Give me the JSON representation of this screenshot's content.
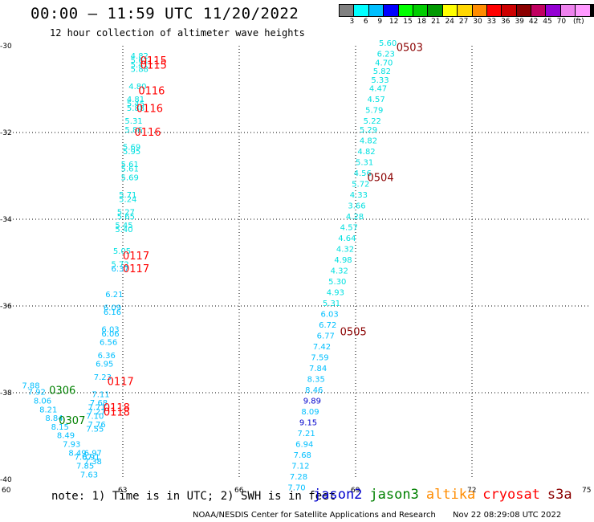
{
  "header": {
    "title": "00:00 – 11:59 UTC 11/20/2022",
    "subtitle": "12 hour collection of altimeter wave heights"
  },
  "colorbar": {
    "colors": [
      "#808080",
      "#00ffff",
      "#00bfff",
      "#0000ff",
      "#00ff00",
      "#00cd00",
      "#009900",
      "#ffff00",
      "#ffd700",
      "#ff8c00",
      "#ff0000",
      "#cd0000",
      "#8b0000",
      "#c00060",
      "#9400d3",
      "#ee82ee",
      "#ff99ff",
      "#000000"
    ],
    "labels": [
      "3",
      "6",
      "9",
      "12",
      "15",
      "18",
      "21",
      "24",
      "27",
      "30",
      "33",
      "36",
      "39",
      "42",
      "45",
      "70",
      "(ft)"
    ]
  },
  "chart_data": {
    "type": "scatter",
    "xlim": [
      60,
      75
    ],
    "ylim": [
      -40,
      -30
    ],
    "x_ticks": [
      "60",
      "63",
      "66",
      "69",
      "72",
      "75"
    ],
    "y_ticks": [
      "-30",
      "-32",
      "-34",
      "-36",
      "-38",
      "-40"
    ],
    "grid": true,
    "points": [
      {
        "x": 63.2,
        "y": -30.3,
        "label": "4.82",
        "color": "#00e0e0"
      },
      {
        "x": 63.2,
        "y": -30.4,
        "label": "5.61",
        "color": "#00e0e0"
      },
      {
        "x": 63.2,
        "y": -30.5,
        "label": "5.41",
        "color": "#00e0e0"
      },
      {
        "x": 63.2,
        "y": -30.6,
        "label": "5.88",
        "color": "#00e0e0"
      },
      {
        "x": 63.15,
        "y": -31.0,
        "label": "4.80",
        "color": "#00e0e0"
      },
      {
        "x": 63.1,
        "y": -31.3,
        "label": "4.81",
        "color": "#00e0e0"
      },
      {
        "x": 63.1,
        "y": -31.4,
        "label": "5.45",
        "color": "#00e0e0"
      },
      {
        "x": 63.1,
        "y": -31.5,
        "label": "5.88",
        "color": "#00e0e0"
      },
      {
        "x": 63.05,
        "y": -31.8,
        "label": "5.31",
        "color": "#00e0e0"
      },
      {
        "x": 63.05,
        "y": -32.0,
        "label": "5.86",
        "color": "#00e0e0"
      },
      {
        "x": 63.0,
        "y": -32.4,
        "label": "5.69",
        "color": "#00e0e0"
      },
      {
        "x": 63.0,
        "y": -32.5,
        "label": "5.95",
        "color": "#00e0e0"
      },
      {
        "x": 62.95,
        "y": -32.8,
        "label": "5.61",
        "color": "#00e0e0"
      },
      {
        "x": 62.95,
        "y": -32.9,
        "label": "5.61",
        "color": "#00e0e0"
      },
      {
        "x": 62.95,
        "y": -33.1,
        "label": "5.69",
        "color": "#00e0e0"
      },
      {
        "x": 62.9,
        "y": -33.5,
        "label": "5.71",
        "color": "#00e0e0"
      },
      {
        "x": 62.9,
        "y": -33.6,
        "label": "5.24",
        "color": "#00e0e0"
      },
      {
        "x": 62.85,
        "y": -33.9,
        "label": "5.27",
        "color": "#00e0e0"
      },
      {
        "x": 62.85,
        "y": -34.0,
        "label": "5.65",
        "color": "#00e0e0"
      },
      {
        "x": 62.8,
        "y": -34.2,
        "label": "5.45",
        "color": "#00e0e0"
      },
      {
        "x": 62.8,
        "y": -34.3,
        "label": "5.40",
        "color": "#00e0e0"
      },
      {
        "x": 62.75,
        "y": -34.8,
        "label": "5.05",
        "color": "#00e0e0"
      },
      {
        "x": 62.7,
        "y": -35.1,
        "label": "5.72",
        "color": "#00e0e0"
      },
      {
        "x": 62.7,
        "y": -35.2,
        "label": "6.37",
        "color": "#00bfff"
      },
      {
        "x": 62.55,
        "y": -35.8,
        "label": "6.21",
        "color": "#00bfff"
      },
      {
        "x": 62.5,
        "y": -36.1,
        "label": "6.09",
        "color": "#00bfff"
      },
      {
        "x": 62.5,
        "y": -36.2,
        "label": "6.16",
        "color": "#00bfff"
      },
      {
        "x": 62.45,
        "y": -36.6,
        "label": "6.03",
        "color": "#00bfff"
      },
      {
        "x": 62.45,
        "y": -36.7,
        "label": "6.06",
        "color": "#00bfff"
      },
      {
        "x": 62.4,
        "y": -36.9,
        "label": "6.56",
        "color": "#00bfff"
      },
      {
        "x": 62.35,
        "y": -37.2,
        "label": "6.36",
        "color": "#00bfff"
      },
      {
        "x": 62.3,
        "y": -37.4,
        "label": "6.95",
        "color": "#00bfff"
      },
      {
        "x": 62.25,
        "y": -37.7,
        "label": "7.23",
        "color": "#00bfff"
      },
      {
        "x": 62.2,
        "y": -38.1,
        "label": "7.11",
        "color": "#00bfff"
      },
      {
        "x": 62.15,
        "y": -38.3,
        "label": "7.68",
        "color": "#00bfff"
      },
      {
        "x": 62.1,
        "y": -38.4,
        "label": "7.71",
        "color": "#00bfff"
      },
      {
        "x": 62.1,
        "y": -38.5,
        "label": "7.27",
        "color": "#00bfff"
      },
      {
        "x": 62.05,
        "y": -38.6,
        "label": "7.10",
        "color": "#00bfff"
      },
      {
        "x": 62.1,
        "y": -38.8,
        "label": "7.76",
        "color": "#00bfff"
      },
      {
        "x": 62.05,
        "y": -38.9,
        "label": "7.55",
        "color": "#00bfff"
      },
      {
        "x": 60.4,
        "y": -37.9,
        "label": "7.88",
        "color": "#00bfff"
      },
      {
        "x": 60.55,
        "y": -38.05,
        "label": "7.92",
        "color": "#00bfff"
      },
      {
        "x": 60.7,
        "y": -38.25,
        "label": "8.06",
        "color": "#00bfff"
      },
      {
        "x": 60.85,
        "y": -38.45,
        "label": "8.21",
        "color": "#00bfff"
      },
      {
        "x": 61.0,
        "y": -38.65,
        "label": "8.84",
        "color": "#00bfff"
      },
      {
        "x": 61.15,
        "y": -38.85,
        "label": "8.15",
        "color": "#00bfff"
      },
      {
        "x": 61.3,
        "y": -39.05,
        "label": "8.49",
        "color": "#00bfff"
      },
      {
        "x": 61.45,
        "y": -39.25,
        "label": "7.93",
        "color": "#00bfff"
      },
      {
        "x": 61.6,
        "y": -39.45,
        "label": "8.49",
        "color": "#00bfff"
      },
      {
        "x": 61.75,
        "y": -39.55,
        "label": "7.07",
        "color": "#00bfff"
      },
      {
        "x": 62.0,
        "y": -39.45,
        "label": "6.97",
        "color": "#00bfff"
      },
      {
        "x": 61.95,
        "y": -39.55,
        "label": "6.91",
        "color": "#00bfff"
      },
      {
        "x": 62.0,
        "y": -39.65,
        "label": "7.38",
        "color": "#00bfff"
      },
      {
        "x": 61.8,
        "y": -39.75,
        "label": "7.85",
        "color": "#00bfff"
      },
      {
        "x": 61.9,
        "y": -39.95,
        "label": "7.63",
        "color": "#00bfff"
      },
      {
        "x": 69.6,
        "y": -30.0,
        "label": "5.60",
        "color": "#00e0e0"
      },
      {
        "x": 69.55,
        "y": -30.25,
        "label": "6.23",
        "color": "#00e0e0"
      },
      {
        "x": 69.5,
        "y": -30.45,
        "label": "4.70",
        "color": "#00e0e0"
      },
      {
        "x": 69.45,
        "y": -30.65,
        "label": "5.82",
        "color": "#00e0e0"
      },
      {
        "x": 69.4,
        "y": -30.85,
        "label": "5.33",
        "color": "#00e0e0"
      },
      {
        "x": 69.35,
        "y": -31.05,
        "label": "4.47",
        "color": "#00e0e0"
      },
      {
        "x": 69.3,
        "y": -31.3,
        "label": "4.57",
        "color": "#00e0e0"
      },
      {
        "x": 69.25,
        "y": -31.55,
        "label": "5.79",
        "color": "#00e0e0"
      },
      {
        "x": 69.2,
        "y": -31.8,
        "label": "5.22",
        "color": "#00e0e0"
      },
      {
        "x": 69.1,
        "y": -32.0,
        "label": "5.29",
        "color": "#00e0e0"
      },
      {
        "x": 69.1,
        "y": -32.25,
        "label": "4.82",
        "color": "#00e0e0"
      },
      {
        "x": 69.05,
        "y": -32.5,
        "label": "4.82",
        "color": "#00e0e0"
      },
      {
        "x": 69.0,
        "y": -32.75,
        "label": "5.31",
        "color": "#00e0e0"
      },
      {
        "x": 68.95,
        "y": -33.0,
        "label": "4.56",
        "color": "#00e0e0"
      },
      {
        "x": 68.9,
        "y": -33.25,
        "label": "5.72",
        "color": "#00e0e0"
      },
      {
        "x": 68.85,
        "y": -33.5,
        "label": "4.33",
        "color": "#00e0e0"
      },
      {
        "x": 68.8,
        "y": -33.75,
        "label": "3.66",
        "color": "#00e0e0"
      },
      {
        "x": 68.75,
        "y": -34.0,
        "label": "4.28",
        "color": "#00e0e0"
      },
      {
        "x": 68.6,
        "y": -34.25,
        "label": "4.57",
        "color": "#00e0e0"
      },
      {
        "x": 68.55,
        "y": -34.5,
        "label": "4.64",
        "color": "#00e0e0"
      },
      {
        "x": 68.5,
        "y": -34.75,
        "label": "4.32",
        "color": "#00e0e0"
      },
      {
        "x": 68.45,
        "y": -35.0,
        "label": "4.98",
        "color": "#00e0e0"
      },
      {
        "x": 68.35,
        "y": -35.25,
        "label": "4.32",
        "color": "#00e0e0"
      },
      {
        "x": 68.3,
        "y": -35.5,
        "label": "5.30",
        "color": "#00e0e0"
      },
      {
        "x": 68.25,
        "y": -35.75,
        "label": "4.93",
        "color": "#00e0e0"
      },
      {
        "x": 68.15,
        "y": -36.0,
        "label": "5.31",
        "color": "#00e0e0"
      },
      {
        "x": 68.1,
        "y": -36.25,
        "label": "6.03",
        "color": "#00bfff"
      },
      {
        "x": 68.05,
        "y": -36.5,
        "label": "6.72",
        "color": "#00bfff"
      },
      {
        "x": 68.0,
        "y": -36.75,
        "label": "6.77",
        "color": "#00bfff"
      },
      {
        "x": 67.9,
        "y": -37.0,
        "label": "7.42",
        "color": "#00bfff"
      },
      {
        "x": 67.85,
        "y": -37.25,
        "label": "7.59",
        "color": "#00bfff"
      },
      {
        "x": 67.8,
        "y": -37.5,
        "label": "7.84",
        "color": "#00bfff"
      },
      {
        "x": 67.75,
        "y": -37.75,
        "label": "8.35",
        "color": "#00bfff"
      },
      {
        "x": 67.7,
        "y": -38.0,
        "label": "8.46",
        "color": "#00bfff"
      },
      {
        "x": 67.65,
        "y": -38.25,
        "label": "9.89",
        "color": "#0000cd"
      },
      {
        "x": 67.6,
        "y": -38.5,
        "label": "8.09",
        "color": "#00bfff"
      },
      {
        "x": 67.55,
        "y": -38.75,
        "label": "9.15",
        "color": "#0000cd"
      },
      {
        "x": 67.5,
        "y": -39.0,
        "label": "7.21",
        "color": "#00bfff"
      },
      {
        "x": 67.45,
        "y": -39.25,
        "label": "6.94",
        "color": "#00bfff"
      },
      {
        "x": 67.4,
        "y": -39.5,
        "label": "7.68",
        "color": "#00bfff"
      },
      {
        "x": 67.35,
        "y": -39.75,
        "label": "7.12",
        "color": "#00bfff"
      },
      {
        "x": 67.3,
        "y": -40.0,
        "label": "7.28",
        "color": "#00bfff"
      },
      {
        "x": 67.25,
        "y": -40.25,
        "label": "7.70",
        "color": "#00bfff"
      }
    ],
    "pass_labels": [
      {
        "label": "0115",
        "color": "#ff0000"
      },
      {
        "label": "0115",
        "color": "#ff0000"
      },
      {
        "label": "0116",
        "color": "#ff0000"
      },
      {
        "label": "0116",
        "color": "#ff0000"
      },
      {
        "label": "0116",
        "color": "#ff0000"
      },
      {
        "label": "0117",
        "color": "#ff0000"
      },
      {
        "label": "0117",
        "color": "#ff0000"
      },
      {
        "label": "0117",
        "color": "#ff0000"
      },
      {
        "label": "0118",
        "color": "#ff0000"
      },
      {
        "label": "0118",
        "color": "#ff0000"
      },
      {
        "label": "0306",
        "color": "#008000"
      },
      {
        "label": "0307",
        "color": "#008000"
      },
      {
        "label": "0503",
        "color": "#8b0000"
      },
      {
        "label": "0504",
        "color": "#8b0000"
      },
      {
        "label": "0505",
        "color": "#8b0000"
      }
    ]
  },
  "notes": {
    "text": "note: 1) Time is in UTC; 2) SWH is in feet"
  },
  "legend": [
    {
      "name": "jason2",
      "color": "#0000cd"
    },
    {
      "name": "jason3",
      "color": "#008000"
    },
    {
      "name": "altika",
      "color": "#ff8c00"
    },
    {
      "name": "cryosat",
      "color": "#ff0000"
    },
    {
      "name": "s3a",
      "color": "#8b0000"
    }
  ],
  "footer": {
    "credit": "NOAA/NESDIS Center for Satellite Applications and Research",
    "timestamp": "Nov 22 08:29:08 UTC 2022"
  }
}
